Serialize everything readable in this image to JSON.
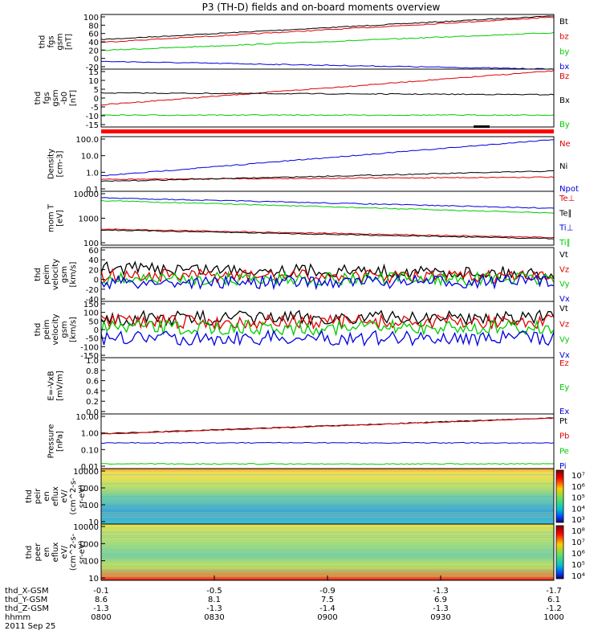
{
  "title": "P3 (TH-D) fields and on-board moments overview",
  "colors": {
    "black": "#000000",
    "red": "#e00000",
    "green": "#00cc00",
    "blue": "#0000dd",
    "bar": "#ff0000"
  },
  "chart_data": [
    {
      "type": "line",
      "ylabel_lines": [
        "thd",
        "fgs",
        "gsm",
        "[nT]"
      ],
      "yticks": [
        "100",
        "80",
        "60",
        "40",
        "20",
        "0",
        "-20"
      ],
      "ylim": [
        -20,
        100
      ],
      "series": [
        {
          "name": "Bt",
          "color": "#000000",
          "values": [
            45,
            97
          ]
        },
        {
          "name": "bz",
          "color": "#e00000",
          "values": [
            39,
            94
          ]
        },
        {
          "name": "by",
          "color": "#00cc00",
          "values": [
            21,
            60
          ]
        },
        {
          "name": "bx",
          "color": "#0000dd",
          "values": [
            -3,
            -20
          ]
        }
      ]
    },
    {
      "type": "line",
      "ylabel_lines": [
        "thd",
        "fgs",
        "gsm",
        "-b0",
        "[nT]"
      ],
      "yticks": [
        "15",
        "10",
        "5",
        "0",
        "-5",
        "-10",
        "-15"
      ],
      "ylim": [
        -18,
        16
      ],
      "series": [
        {
          "name": "Bz",
          "color": "#e00000",
          "values": [
            -5,
            15
          ]
        },
        {
          "name": "Bx",
          "color": "#000000",
          "values": [
            2,
            1
          ]
        },
        {
          "name": "By",
          "color": "#00cc00",
          "values": [
            -11,
            -11
          ]
        }
      ]
    },
    {
      "type": "line",
      "ylabel_lines": [
        "Density",
        "[cm-3]"
      ],
      "yticks": [
        "100.0",
        "10.0",
        "1.0",
        "0.1"
      ],
      "ylim": [
        0.1,
        100
      ],
      "yscale": "log",
      "series": [
        {
          "name": "Ne",
          "color": "#e00000",
          "values": [
            0.45,
            0.6
          ]
        },
        {
          "name": "Ni",
          "color": "#000000",
          "values": [
            0.35,
            1.3
          ]
        },
        {
          "name": "Npot",
          "color": "#0000dd",
          "values": [
            0.7,
            70
          ]
        }
      ]
    },
    {
      "type": "line",
      "ylabel_lines": [
        "mom T",
        "[eV]"
      ],
      "yticks": [
        "10000",
        "1000",
        "100"
      ],
      "ylim": [
        40,
        12000
      ],
      "yscale": "log",
      "series": [
        {
          "name": "Te⊥",
          "color": "#e00000",
          "values": [
            220,
            90
          ]
        },
        {
          "name": "Te∥",
          "color": "#000000",
          "values": [
            200,
            80
          ]
        },
        {
          "name": "Ti⊥",
          "color": "#0000dd",
          "values": [
            6000,
            2000
          ]
        },
        {
          "name": "Ti∥",
          "color": "#00cc00",
          "values": [
            4500,
            1200
          ]
        }
      ]
    },
    {
      "type": "line",
      "ylabel_lines": [
        "thd",
        "peim",
        "velocity",
        "gsm",
        "[km/s]"
      ],
      "yticks": [
        "60",
        "40",
        "20",
        "0",
        "-20",
        "-40"
      ],
      "ylim": [
        -40,
        60
      ],
      "series": [
        {
          "name": "Vt",
          "color": "#000000",
          "values": [
            22,
            12
          ]
        },
        {
          "name": "Vz",
          "color": "#e00000",
          "values": [
            8,
            5
          ]
        },
        {
          "name": "Vy",
          "color": "#00cc00",
          "values": [
            2,
            2
          ]
        },
        {
          "name": "Vx",
          "color": "#0000dd",
          "values": [
            -5,
            -3
          ]
        }
      ]
    },
    {
      "type": "line",
      "ylabel_lines": [
        "thd",
        "peim",
        "velocity",
        "gsm",
        "[km/s]"
      ],
      "yticks": [
        "150",
        "100",
        "50",
        "0",
        "-50",
        "-100",
        "-150"
      ],
      "ylim": [
        -150,
        150
      ],
      "series": [
        {
          "name": "Vt",
          "color": "#000000",
          "values": [
            60,
            65
          ]
        },
        {
          "name": "Vz",
          "color": "#e00000",
          "values": [
            40,
            40
          ]
        },
        {
          "name": "Vy",
          "color": "#00cc00",
          "values": [
            10,
            10
          ]
        },
        {
          "name": "Vx",
          "color": "#0000dd",
          "values": [
            -45,
            -45
          ]
        }
      ]
    },
    {
      "type": "line",
      "ylabel_lines": [
        "E=-VxB",
        "[mV/m]"
      ],
      "yticks": [
        "1.0",
        "0.8",
        "0.6",
        "0.4",
        "0.2",
        "0.0"
      ],
      "ylim": [
        0,
        1
      ],
      "series": [
        {
          "name": "Ez",
          "color": "#e00000",
          "values": []
        },
        {
          "name": "Ey",
          "color": "#00cc00",
          "values": []
        },
        {
          "name": "Ex",
          "color": "#0000dd",
          "values": []
        }
      ]
    },
    {
      "type": "line",
      "ylabel_lines": [
        "Pressure",
        "[nPa]"
      ],
      "yticks": [
        "10.00",
        "1.00",
        "0.10",
        "0.01"
      ],
      "ylim": [
        0.008,
        12
      ],
      "yscale": "log",
      "series": [
        {
          "name": "Pt",
          "color": "#000000",
          "values": [
            0.85,
            7
          ]
        },
        {
          "name": "Pb",
          "color": "#e00000",
          "values": [
            0.8,
            6.8
          ]
        },
        {
          "name": "Pe",
          "color": "#00cc00",
          "values": [
            0.015,
            0.015
          ]
        },
        {
          "name": "Pi",
          "color": "#0000dd",
          "values": [
            0.25,
            0.25
          ]
        }
      ]
    },
    {
      "type": "heatmap",
      "ylabel_lines": [
        "thd",
        "peir",
        "en",
        "eflux",
        "eV/",
        "(cm^2-s-",
        "sr-eV)"
      ],
      "yticks": [
        "10000",
        "1000",
        "100",
        "10"
      ],
      "ylim": [
        5,
        30000
      ],
      "yscale": "log",
      "colorbar": [
        "10⁷",
        "10⁶",
        "10⁵",
        "10⁴",
        "10³"
      ]
    },
    {
      "type": "heatmap",
      "ylabel_lines": [
        "thd",
        "peer",
        "en",
        "eflux",
        "eV/",
        "(cm^2-s-",
        "sr-eV)"
      ],
      "yticks": [
        "10000",
        "1000",
        "100",
        "10"
      ],
      "ylim": [
        5,
        30000
      ],
      "yscale": "log",
      "colorbar": [
        "10⁸",
        "10⁷",
        "10⁶",
        "10⁵",
        "10⁴"
      ]
    }
  ],
  "xaxis": {
    "rows": [
      {
        "label": "thd_X-GSM",
        "values": [
          "-0.1",
          "-0.5",
          "-0.9",
          "-1.3",
          "-1.7"
        ]
      },
      {
        "label": "thd_Y-GSM",
        "values": [
          "8.6",
          "8.1",
          "7.5",
          "6.9",
          "6.1"
        ]
      },
      {
        "label": "thd_Z-GSM",
        "values": [
          "-1.3",
          "-1.3",
          "-1.4",
          "-1.3",
          "-1.2"
        ]
      },
      {
        "label": "hhmm",
        "values": [
          "0800",
          "0830",
          "0900",
          "0930",
          "1000"
        ]
      }
    ],
    "date": "2011 Sep 25"
  }
}
